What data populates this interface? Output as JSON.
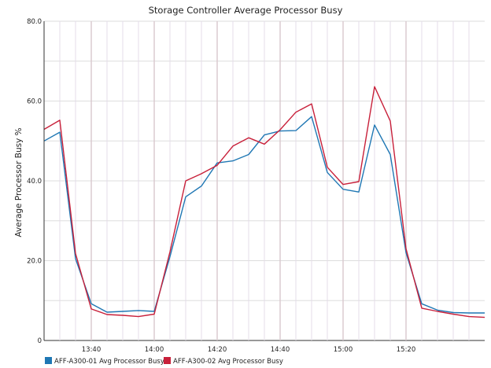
{
  "chart_data": {
    "type": "line",
    "title": "Storage Controller Average Processor Busy",
    "xlabel": "",
    "ylabel": "Average Processor Busy %",
    "ylim": [
      0,
      80
    ],
    "y_ticks": [
      "0",
      "20.0",
      "40.0",
      "60.0",
      "80.0"
    ],
    "y_tick_values": [
      0,
      20,
      40,
      60,
      80
    ],
    "x_range_minutes": [
      "13:25",
      "15:45"
    ],
    "x_ticks": [
      "13:40",
      "14:00",
      "14:20",
      "14:40",
      "15:00",
      "15:20"
    ],
    "x_tick_minutes": [
      "13:40",
      "14:00",
      "14:20",
      "14:40",
      "15:00",
      "15:20"
    ],
    "grid": true,
    "legend_position": "bottom-left",
    "x": [
      "13:25",
      "13:30",
      "13:35",
      "13:40",
      "13:45",
      "13:50",
      "13:55",
      "14:00",
      "14:05",
      "14:10",
      "14:15",
      "14:20",
      "14:25",
      "14:30",
      "14:35",
      "14:40",
      "14:45",
      "14:50",
      "14:55",
      "15:00",
      "15:05",
      "15:10",
      "15:15",
      "15:20",
      "15:25",
      "15:30",
      "15:35",
      "15:40",
      "15:45"
    ],
    "series": [
      {
        "name": "AFF-A300-01 Avg Processor Busy",
        "color": "#1f77b4",
        "values": [
          50.0,
          52.2,
          20.5,
          9.2,
          7.1,
          7.3,
          7.5,
          7.3,
          21.0,
          36.0,
          38.7,
          44.5,
          45.0,
          46.6,
          51.5,
          52.5,
          52.6,
          56.1,
          42.1,
          37.9,
          37.2,
          54.0,
          46.6,
          22.0,
          9.2,
          7.6,
          7.0,
          6.9,
          6.9
        ]
      },
      {
        "name": "AFF-A300-02 Avg Processor Busy",
        "color": "#c8203a",
        "values": [
          52.9,
          55.2,
          21.8,
          7.9,
          6.5,
          6.3,
          6.0,
          6.6,
          22.2,
          40.0,
          41.8,
          43.9,
          48.7,
          50.8,
          49.2,
          52.8,
          57.2,
          59.3,
          43.4,
          39.1,
          39.8,
          63.6,
          55.0,
          23.0,
          8.1,
          7.3,
          6.6,
          6.0,
          5.8
        ]
      }
    ]
  }
}
